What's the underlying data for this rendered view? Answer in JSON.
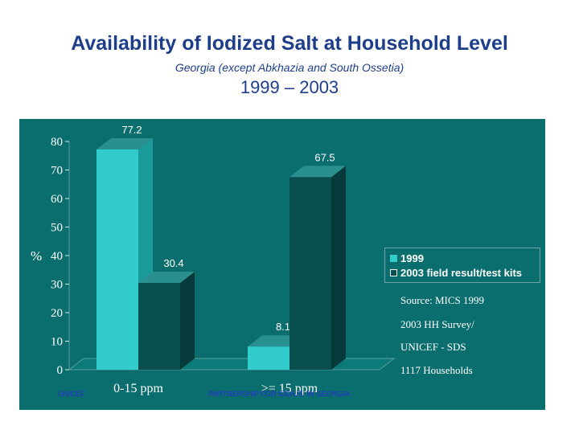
{
  "slide": {
    "title": "Availability of Iodized Salt at Household Level",
    "subtitle": "Georgia (except Abkhazia and South Ossetia)",
    "years": "1999 – 2003",
    "footer_left": "UNICEF",
    "footer_center": "PARTNERSHIP FOR IDD/USI IN GEORGIA"
  },
  "source_note": {
    "lines": [
      "Source:   MICS 1999",
      "2003 HH Survey/",
      "UNICEF - SDS",
      "1117 Households"
    ]
  },
  "colors": {
    "background": "#ffffff",
    "panel": "#0b6e6e",
    "bar_front": "#33cccc",
    "bar_side": "#0a4f4f",
    "bar_top": "#2a8f8f",
    "text": "#ffffff",
    "title": "#1e3e8a"
  },
  "chart_data": {
    "type": "bar",
    "ylabel": "%",
    "ylim": [
      0,
      80
    ],
    "yticks": [
      0,
      10,
      20,
      30,
      40,
      50,
      60,
      70,
      80
    ],
    "categories": [
      "0-15 ppm",
      ">= 15 ppm"
    ],
    "series": [
      {
        "name": "1999",
        "values": [
          77.2,
          8.1
        ],
        "labels": [
          "77.2",
          "8.1"
        ]
      },
      {
        "name": "2003 field result/test kits",
        "values": [
          30.4,
          67.5
        ],
        "labels": [
          "30.4",
          "67.5"
        ]
      }
    ],
    "legend_position": "right",
    "grid": false
  }
}
